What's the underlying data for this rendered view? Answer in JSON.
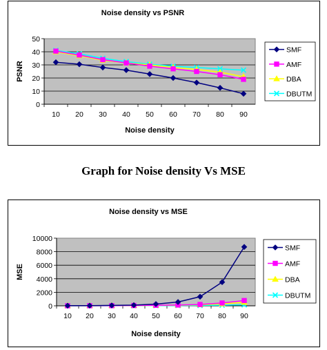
{
  "caption": "Graph for Noise density Vs MSE",
  "chart_data": [
    {
      "type": "line",
      "title": "Noise density vs PSNR",
      "xlabel": "Noise density",
      "ylabel": "PSNR",
      "categories": [
        "10",
        "20",
        "30",
        "40",
        "50",
        "60",
        "70",
        "80",
        "90"
      ],
      "ylim": [
        0,
        50
      ],
      "yticks": [
        "0",
        "10",
        "20",
        "30",
        "40",
        "50"
      ],
      "grid": true,
      "plot_background": "#c0c0c0",
      "legend_position": "right",
      "series": [
        {
          "name": "SMF",
          "color": "#000080",
          "marker": "diamond",
          "values": [
            32,
            30.5,
            28,
            26,
            23,
            20,
            16.5,
            12.5,
            8
          ]
        },
        {
          "name": "AMF",
          "color": "#ff00ff",
          "marker": "square",
          "values": [
            40.5,
            37.5,
            34,
            31.5,
            29,
            27,
            25,
            22.5,
            19
          ]
        },
        {
          "name": "DBA",
          "color": "#ffff00",
          "marker": "triangle",
          "values": [
            40,
            37,
            33.5,
            31.5,
            30,
            28,
            26.5,
            24.5,
            21
          ]
        },
        {
          "name": "DBUTM",
          "color": "#00ffff",
          "marker": "x",
          "values": [
            41,
            38.5,
            35,
            32.5,
            30.5,
            29,
            28,
            27,
            26
          ]
        }
      ]
    },
    {
      "type": "line",
      "title": "Noise density vs MSE",
      "xlabel": "Noise density",
      "ylabel": "MSE",
      "categories": [
        "10",
        "20",
        "30",
        "40",
        "50",
        "60",
        "70",
        "80",
        "90"
      ],
      "ylim": [
        0,
        10000
      ],
      "yticks": [
        "0",
        "2000",
        "4000",
        "6000",
        "8000",
        "10000"
      ],
      "grid": true,
      "plot_background": "#c0c0c0",
      "legend_position": "right",
      "series": [
        {
          "name": "SMF",
          "color": "#000080",
          "marker": "diamond",
          "values": [
            20,
            30,
            60,
            100,
            260,
            560,
            1350,
            3500,
            8700
          ]
        },
        {
          "name": "AMF",
          "color": "#ff00ff",
          "marker": "square",
          "values": [
            10,
            15,
            25,
            45,
            80,
            120,
            200,
            420,
            780
          ]
        },
        {
          "name": "DBA",
          "color": "#ffff00",
          "marker": "triangle",
          "values": [
            10,
            15,
            25,
            40,
            65,
            95,
            150,
            280,
            520
          ]
        },
        {
          "name": "DBUTM",
          "color": "#00ffff",
          "marker": "x",
          "values": [
            5,
            10,
            15,
            20,
            30,
            40,
            60,
            90,
            150
          ]
        }
      ]
    }
  ]
}
